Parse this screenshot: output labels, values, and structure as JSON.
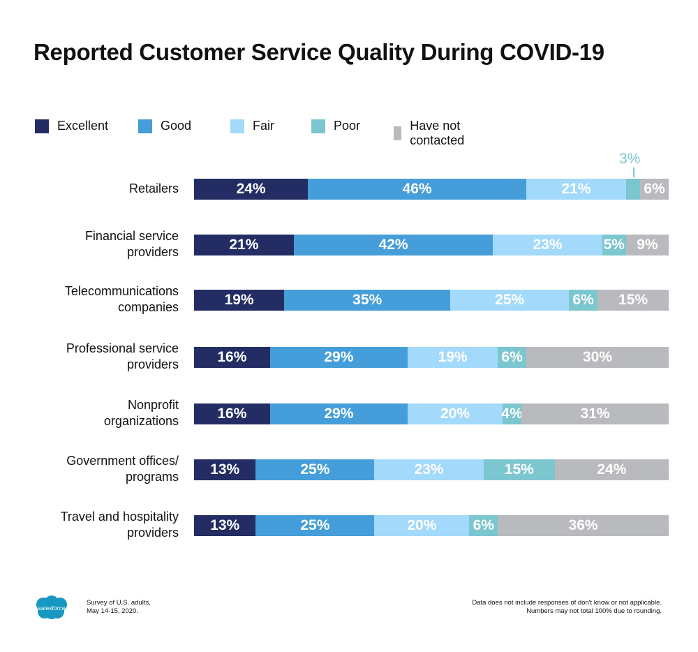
{
  "chart_data": {
    "type": "bar",
    "orientation": "horizontal-stacked",
    "title": "Reported Customer Service Quality During COVID-19",
    "xlabel": "",
    "ylabel": "",
    "legend_position": "top-left",
    "categories": [
      "Retailers",
      "Financial service providers",
      "Telecommunications companies",
      "Professional service providers",
      "Nonprofit organizations",
      "Government offices/ programs",
      "Travel and hospitality providers"
    ],
    "category_lines": [
      [
        "Retailers"
      ],
      [
        "Financial service",
        "providers"
      ],
      [
        "Telecommunications",
        "companies"
      ],
      [
        "Professional service",
        "providers"
      ],
      [
        "Nonprofit",
        "organizations"
      ],
      [
        "Government offices/",
        "programs"
      ],
      [
        "Travel and hospitality",
        "providers"
      ]
    ],
    "series": [
      {
        "name": "Excellent",
        "color": "#232d63",
        "values": [
          24,
          21,
          19,
          16,
          16,
          13,
          13
        ]
      },
      {
        "name": "Good",
        "color": "#459ed9",
        "values": [
          46,
          42,
          35,
          29,
          29,
          25,
          25
        ]
      },
      {
        "name": "Fair",
        "color": "#a3d9fb",
        "values": [
          21,
          23,
          25,
          19,
          20,
          23,
          20
        ]
      },
      {
        "name": "Poor",
        "color": "#7cc6cf",
        "values": [
          3,
          5,
          6,
          6,
          4,
          15,
          6
        ]
      },
      {
        "name": "Have not contacted",
        "color": "#b9babe",
        "values": [
          6,
          9,
          15,
          30,
          31,
          24,
          36
        ]
      }
    ],
    "value_suffix": "%",
    "callout": {
      "category_index": 0,
      "series_index": 3,
      "text": "3%"
    }
  },
  "footer": {
    "logo_text": "salesforce",
    "source_lines": [
      "Survey of U.S. adults,",
      "May 14-15, 2020."
    ],
    "note_lines": [
      "Data does not include responses of don't know or not applicable.",
      "Numbers may not total 100% due to rounding."
    ]
  }
}
